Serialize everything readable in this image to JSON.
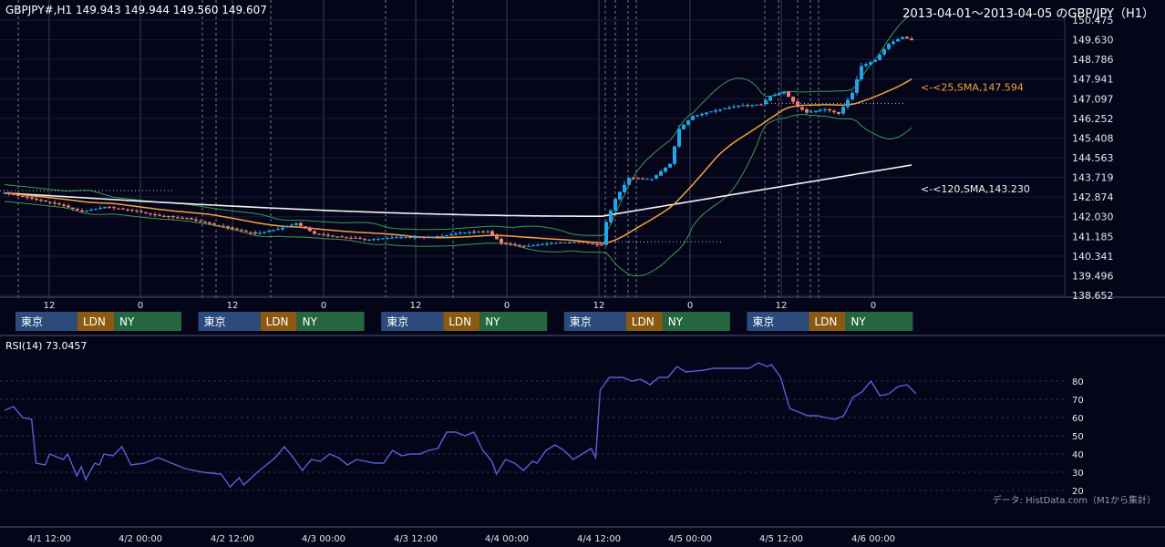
{
  "header": {
    "ohlc": "GBPJPY#,H1 149.943 149.944 149.560 149.607",
    "range": "2013-04-01～2013-04-05 のGBP/JPY（H1）"
  },
  "rsi_label": "RSI(14) 73.0457",
  "credit": "データ: HistData.com（M1から集計）",
  "colors": {
    "background": "#05051a",
    "up": "#1ea7e8",
    "down": "#f07f72",
    "sma25": "#f5a23a",
    "sma120": "#f2f2f2",
    "band": "#3a9a50",
    "rsi": "#5560d8",
    "tokyo": "#2a4b7c",
    "london": "#8a5a12",
    "newyork": "#256640"
  },
  "chart_data": [
    {
      "type": "candlestick",
      "title": "GBPJPY#,H1",
      "ylim": [
        138.652,
        150.475
      ],
      "y_ticks": [
        150.475,
        149.63,
        148.786,
        147.941,
        147.097,
        146.252,
        145.408,
        144.563,
        143.719,
        142.874,
        142.03,
        141.185,
        140.341,
        139.496,
        138.652
      ],
      "x_ticks": [
        "12",
        "0",
        "12",
        "0",
        "12",
        "0",
        "12",
        "0",
        "12",
        "0"
      ],
      "sessions": [
        {
          "day": "4/1",
          "labels": [
            "東京",
            "LDN",
            "NY"
          ]
        },
        {
          "day": "4/2",
          "labels": [
            "東京",
            "LDN",
            "NY"
          ]
        },
        {
          "day": "4/3",
          "labels": [
            "東京",
            "LDN",
            "NY"
          ]
        },
        {
          "day": "4/4",
          "labels": [
            "東京",
            "LDN",
            "NY"
          ]
        },
        {
          "day": "4/5",
          "labels": [
            "東京",
            "LDN",
            "NY"
          ]
        }
      ],
      "last_bar": {
        "open": 149.943,
        "high": 149.944,
        "low": 149.56,
        "close": 149.607
      },
      "overlays": [
        {
          "name": "25,SMA",
          "label": "<-<25,SMA,147.594",
          "last": 147.594
        },
        {
          "name": "120,SMA",
          "label": "<-<120,SMA,143.230",
          "last": 143.23
        }
      ],
      "close_anchors": [
        [
          0,
          143.05
        ],
        [
          5,
          142.85
        ],
        [
          12,
          142.55
        ],
        [
          17,
          142.25
        ],
        [
          22,
          142.45
        ],
        [
          28,
          142.3
        ],
        [
          33,
          142.1
        ],
        [
          40,
          141.95
        ],
        [
          48,
          141.6
        ],
        [
          55,
          141.3
        ],
        [
          60,
          141.5
        ],
        [
          64,
          141.75
        ],
        [
          68,
          141.3
        ],
        [
          74,
          141.15
        ],
        [
          80,
          141.05
        ],
        [
          86,
          141.15
        ],
        [
          92,
          141.15
        ],
        [
          96,
          141.2
        ],
        [
          100,
          141.35
        ],
        [
          106,
          141.4
        ],
        [
          109,
          140.9
        ],
        [
          114,
          140.75
        ],
        [
          120,
          140.9
        ],
        [
          126,
          140.95
        ],
        [
          131,
          140.8
        ],
        [
          132,
          141.8
        ],
        [
          134,
          142.8
        ],
        [
          137,
          143.7
        ],
        [
          142,
          143.65
        ],
        [
          146,
          144.3
        ],
        [
          148,
          145.8
        ],
        [
          151,
          146.35
        ],
        [
          156,
          146.6
        ],
        [
          161,
          146.8
        ],
        [
          166,
          146.85
        ],
        [
          168,
          147.2
        ],
        [
          171,
          147.4
        ],
        [
          174,
          146.75
        ],
        [
          176,
          146.5
        ],
        [
          180,
          146.65
        ],
        [
          183,
          146.45
        ],
        [
          186,
          147.35
        ],
        [
          188,
          148.5
        ],
        [
          191,
          148.75
        ],
        [
          194,
          149.45
        ],
        [
          197,
          149.75
        ],
        [
          199,
          149.607
        ]
      ]
    },
    {
      "type": "line",
      "title": "RSI(14)",
      "last": 73.0457,
      "ylim": [
        15,
        95
      ],
      "y_ticks": [
        80,
        70,
        60,
        50,
        40,
        30,
        20
      ],
      "x_ticks": [
        "4/1 12:00",
        "4/2 00:00",
        "4/2 12:00",
        "4/3 00:00",
        "4/3 12:00",
        "4/4 00:00",
        "4/4 12:00",
        "4/5 00:00",
        "4/5 12:00",
        "4/6 00:00"
      ],
      "anchors": [
        [
          0,
          64
        ],
        [
          2,
          66
        ],
        [
          4,
          60
        ],
        [
          6,
          59
        ],
        [
          7,
          35
        ],
        [
          9,
          34
        ],
        [
          10,
          40
        ],
        [
          13,
          37
        ],
        [
          14,
          40
        ],
        [
          16,
          28
        ],
        [
          17,
          33
        ],
        [
          18,
          26
        ],
        [
          20,
          35
        ],
        [
          21,
          34
        ],
        [
          22,
          40
        ],
        [
          24,
          39
        ],
        [
          26,
          44
        ],
        [
          28,
          34
        ],
        [
          31,
          35
        ],
        [
          34,
          38
        ],
        [
          36,
          36
        ],
        [
          40,
          32
        ],
        [
          44,
          30
        ],
        [
          48,
          29
        ],
        [
          50,
          22
        ],
        [
          52,
          27
        ],
        [
          53,
          23
        ],
        [
          56,
          30
        ],
        [
          60,
          38
        ],
        [
          62,
          44
        ],
        [
          64,
          38
        ],
        [
          66,
          31
        ],
        [
          68,
          37
        ],
        [
          70,
          36
        ],
        [
          72,
          40
        ],
        [
          74,
          38
        ],
        [
          76,
          34
        ],
        [
          78,
          37
        ],
        [
          80,
          36
        ],
        [
          82,
          35
        ],
        [
          84,
          35
        ],
        [
          86,
          42
        ],
        [
          88,
          39
        ],
        [
          90,
          40
        ],
        [
          92,
          40
        ],
        [
          94,
          42
        ],
        [
          96,
          43
        ],
        [
          98,
          52
        ],
        [
          100,
          52
        ],
        [
          102,
          50
        ],
        [
          104,
          52
        ],
        [
          106,
          42
        ],
        [
          108,
          36
        ],
        [
          109,
          29
        ],
        [
          111,
          37
        ],
        [
          113,
          35
        ],
        [
          115,
          31
        ],
        [
          117,
          36
        ],
        [
          118,
          35
        ],
        [
          120,
          42
        ],
        [
          122,
          45
        ],
        [
          124,
          42
        ],
        [
          126,
          37
        ],
        [
          128,
          40
        ],
        [
          130,
          43
        ],
        [
          131,
          38
        ],
        [
          132,
          75
        ],
        [
          134,
          82
        ],
        [
          137,
          82
        ],
        [
          139,
          80
        ],
        [
          141,
          81
        ],
        [
          143,
          78
        ],
        [
          145,
          82
        ],
        [
          147,
          82
        ],
        [
          149,
          88
        ],
        [
          151,
          85
        ],
        [
          155,
          86
        ],
        [
          157,
          87
        ],
        [
          163,
          87
        ],
        [
          165,
          87
        ],
        [
          167,
          90
        ],
        [
          169,
          88
        ],
        [
          170,
          89
        ],
        [
          172,
          82
        ],
        [
          174,
          65
        ],
        [
          176,
          63
        ],
        [
          178,
          61
        ],
        [
          180,
          61
        ],
        [
          182,
          60
        ],
        [
          184,
          59
        ],
        [
          186,
          61
        ],
        [
          188,
          71
        ],
        [
          190,
          74
        ],
        [
          192,
          80
        ],
        [
          194,
          72
        ],
        [
          196,
          73
        ],
        [
          198,
          77
        ],
        [
          200,
          78
        ],
        [
          202,
          73.0457
        ]
      ]
    }
  ]
}
